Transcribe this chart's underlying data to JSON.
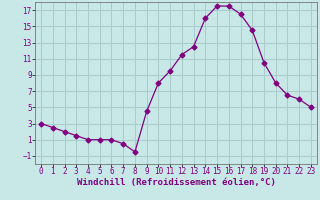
{
  "x": [
    0,
    1,
    2,
    3,
    4,
    5,
    6,
    7,
    8,
    9,
    10,
    11,
    12,
    13,
    14,
    15,
    16,
    17,
    18,
    19,
    20,
    21,
    22,
    23
  ],
  "y": [
    3.0,
    2.5,
    2.0,
    1.5,
    1.0,
    1.0,
    1.0,
    0.5,
    -0.5,
    4.5,
    8.0,
    9.5,
    11.5,
    12.5,
    16.0,
    17.5,
    17.5,
    16.5,
    14.5,
    10.5,
    8.0,
    6.5,
    6.0,
    5.0
  ],
  "line_color": "#800080",
  "marker": "D",
  "markersize": 2.5,
  "background_color": "#c8e8e8",
  "grid_color": "#a8cccc",
  "xlabel": "Windchill (Refroidissement éolien,°C)",
  "ylabel": "",
  "xlim": [
    -0.5,
    23.5
  ],
  "ylim": [
    -2,
    18
  ],
  "yticks": [
    -1,
    1,
    3,
    5,
    7,
    9,
    11,
    13,
    15,
    17
  ],
  "xticks": [
    0,
    1,
    2,
    3,
    4,
    5,
    6,
    7,
    8,
    9,
    10,
    11,
    12,
    13,
    14,
    15,
    16,
    17,
    18,
    19,
    20,
    21,
    22,
    23
  ],
  "tick_fontsize": 5.5,
  "xlabel_fontsize": 6.5
}
